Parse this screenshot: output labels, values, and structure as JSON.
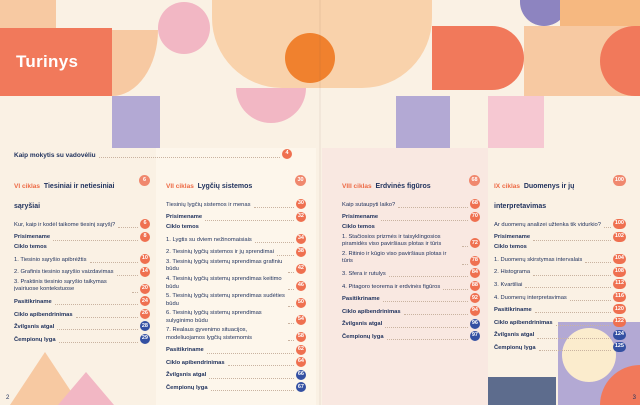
{
  "colors": {
    "coral": "#f1795b",
    "accent": "#ed6a45",
    "navy": "#21335e",
    "badge_orange": "#ef7050",
    "badge_blue": "#3450a2",
    "badge_header": "#f0886e",
    "peach": "#f7c9a2",
    "pink": "#f2b7c4",
    "lavender": "#b3a9d4",
    "cream": "#faf1e4"
  },
  "header": {
    "title": "Turinys"
  },
  "howto": {
    "label": "Kaip mokytis su vadovėliu",
    "page": "4"
  },
  "footer": {
    "left_page_number": "2",
    "right_page_number": "3"
  },
  "sections": [
    {
      "cycle": "VI ciklas",
      "title": "Tiesiniai ir netiesiniai sąryšiai",
      "page": "6",
      "items": [
        {
          "label": "Kur, kaip ir kodėl taikome tiesinį sąryšį?",
          "page": "6"
        },
        {
          "label": "Prisimename",
          "page": "8",
          "bold": true
        },
        {
          "label": "Ciklo temos",
          "bold": true
        },
        {
          "label": "1. Tiesinio sąryšio apibrėžtis",
          "page": "10"
        },
        {
          "label": "2. Grafinis tiesinio sąryšio vaizdavimas",
          "page": "14"
        },
        {
          "label": "3. Praktinis tiesinio sąryšio taikymas įvairiuose kontekstuose",
          "page": "20"
        },
        {
          "label": "Pasitikriname",
          "page": "24",
          "bold": true
        },
        {
          "label": "Ciklo apibendrinimas",
          "page": "26",
          "bold": true
        },
        {
          "label": "Žvilgsnis atgal",
          "page": "28",
          "bold": true,
          "badge": "blue"
        },
        {
          "label": "Čempionų lyga",
          "page": "29",
          "bold": true,
          "badge": "blue"
        }
      ]
    },
    {
      "cycle": "VII ciklas",
      "title": "Lygčių sistemos",
      "page": "30",
      "items": [
        {
          "label": "Tiesinių lygčių sistemos ir menas",
          "page": "30"
        },
        {
          "label": "Prisimename",
          "page": "32",
          "bold": true
        },
        {
          "label": "Ciklo temos",
          "bold": true
        },
        {
          "label": "1. Lygtis su dviem nežinomaisiais",
          "page": "34"
        },
        {
          "label": "2. Tiesinių lygčių sistemos ir jų sprendimai",
          "page": "38"
        },
        {
          "label": "3. Tiesinių lygčių sistemų sprendimas grafiniu būdu",
          "page": "42"
        },
        {
          "label": "4. Tiesinių lygčių sistemų sprendimas keitimo būdu",
          "page": "46"
        },
        {
          "label": "5. Tiesinių lygčių sistemų sprendimas sudėties būdu",
          "page": "50"
        },
        {
          "label": "6. Tiesinių lygčių sistemų sprendimas sulyginimo būdu",
          "page": "54"
        },
        {
          "label": "7. Realaus gyvenimo situacijos, modeliuojamos lygčių sistemomis",
          "page": "58"
        },
        {
          "label": "Pasitikriname",
          "page": "62",
          "bold": true
        },
        {
          "label": "Ciklo apibendrinimas",
          "page": "64",
          "bold": true
        },
        {
          "label": "Žvilgsnis atgal",
          "page": "66",
          "bold": true,
          "badge": "blue"
        },
        {
          "label": "Čempionų lyga",
          "page": "67",
          "bold": true,
          "badge": "blue"
        }
      ]
    },
    {
      "cycle": "VIII ciklas",
      "title": "Erdvinės figūros",
      "page": "68",
      "items": [
        {
          "label": "Kaip sutaupyti laiko?",
          "page": "68"
        },
        {
          "label": "Prisimename",
          "page": "70",
          "bold": true
        },
        {
          "label": "Ciklo temos",
          "bold": true
        },
        {
          "label": "1. Stačiosios prizmės ir taisyklingosios piramidės viso paviršiaus plotas ir tūris",
          "page": "72"
        },
        {
          "label": "2. Ritinio ir kūgio viso paviršiaus plotas ir tūris",
          "page": "78"
        },
        {
          "label": "3. Sfera ir rutulys",
          "page": "84"
        },
        {
          "label": "4. Pitagoro teorema ir erdvinės figūros",
          "page": "88"
        },
        {
          "label": "Pasitikriname",
          "page": "92",
          "bold": true
        },
        {
          "label": "Ciklo apibendrinimas",
          "page": "94",
          "bold": true
        },
        {
          "label": "Žvilgsnis atgal",
          "page": "96",
          "bold": true,
          "badge": "blue"
        },
        {
          "label": "Čempionų lyga",
          "page": "97",
          "bold": true,
          "badge": "blue"
        }
      ]
    },
    {
      "cycle": "IX ciklas",
      "title": "Duomenys ir jų interpretavimas",
      "page": "100",
      "items": [
        {
          "label": "Ar duomenų analizei užtenka tik vidurkio?",
          "page": "100"
        },
        {
          "label": "Prisimename",
          "page": "102",
          "bold": true
        },
        {
          "label": "Ciklo temos",
          "bold": true
        },
        {
          "label": "1. Duomenų skirstymas intervalais",
          "page": "104"
        },
        {
          "label": "2. Histograma",
          "page": "108"
        },
        {
          "label": "3. Kvartiliai",
          "page": "112"
        },
        {
          "label": "4. Duomenų interpretavimas",
          "page": "116"
        },
        {
          "label": "Pasitikriname",
          "page": "120",
          "bold": true
        },
        {
          "label": "Ciklo apibendrinimas",
          "page": "122",
          "bold": true
        },
        {
          "label": "Žvilgsnis atgal",
          "page": "124",
          "bold": true,
          "badge": "blue"
        },
        {
          "label": "Čempionų lyga",
          "page": "125",
          "bold": true,
          "badge": "blue"
        }
      ]
    }
  ]
}
